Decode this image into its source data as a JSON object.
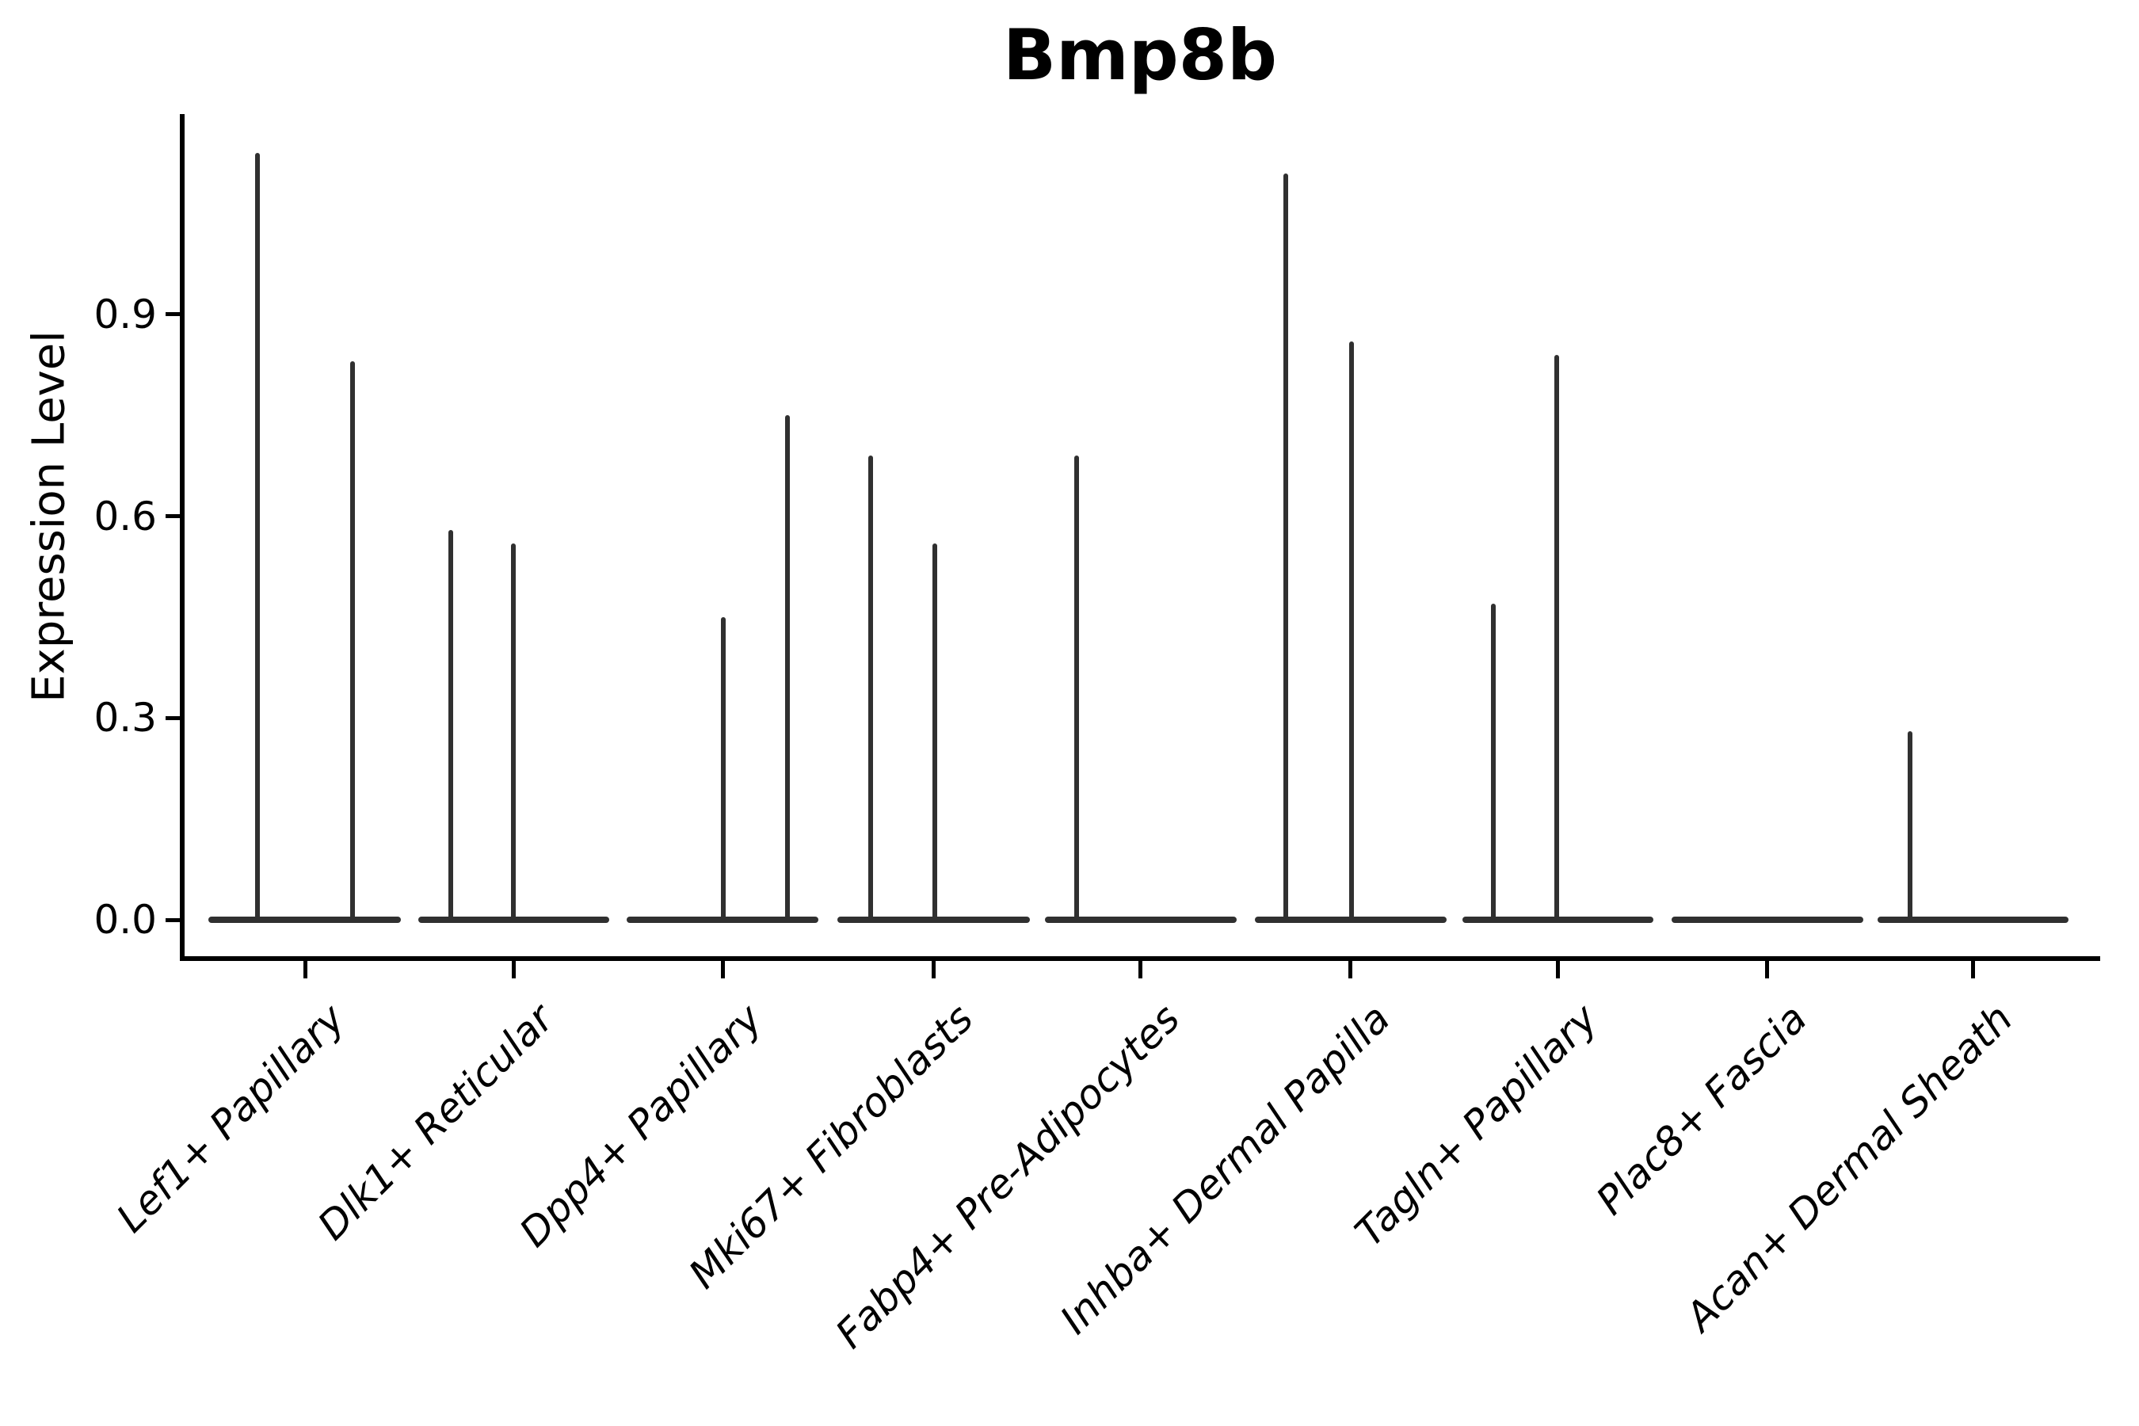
{
  "figure": {
    "title": "Bmp8b",
    "ylabel": "Expression Level"
  },
  "colors": {
    "axis": "#000000",
    "violin_line": "#303030",
    "text": "#000000",
    "background": "#ffffff"
  },
  "chart_data": {
    "type": "violin",
    "title": "Bmp8b",
    "xlabel": "",
    "ylabel": "Expression Level",
    "ylim": [
      0,
      1.2
    ],
    "grid": false,
    "legend": null,
    "yticks": [
      {
        "value": 0.0,
        "label": "0.0"
      },
      {
        "value": 0.3,
        "label": "0.3"
      },
      {
        "value": 0.6,
        "label": "0.6"
      },
      {
        "value": 0.9,
        "label": "0.9"
      }
    ],
    "categories": [
      "Lef1+ Papillary",
      "Dlk1+ Reticular",
      "Dpp4+ Papillary",
      "Mki67+ Fibroblasts",
      "Fabp4+ Pre-Adipocytes",
      "Inhba+ Dermal Papilla",
      "Tagln+ Papillary",
      "Plac8+ Fascia",
      "Acan+ Dermal Sheath"
    ],
    "violins": [
      {
        "category": "Lef1+ Papillary",
        "center_x": 385,
        "baseline_span": [
          263,
          506
        ],
        "spikes": [
          {
            "x": 325,
            "max_expression": 1.14
          },
          {
            "x": 445,
            "max_expression": 0.83
          }
        ]
      },
      {
        "category": "Dlk1+ Reticular",
        "center_x": 648,
        "baseline_span": [
          528,
          769
        ],
        "spikes": [
          {
            "x": 569,
            "max_expression": 0.58
          },
          {
            "x": 648,
            "max_expression": 0.56
          }
        ]
      },
      {
        "category": "Dpp4+ Papillary",
        "center_x": 912,
        "baseline_span": [
          791,
          1033
        ],
        "spikes": [
          {
            "x": 913,
            "max_expression": 0.45
          },
          {
            "x": 994,
            "max_expression": 0.75
          }
        ]
      },
      {
        "category": "Mki67+ Fibroblasts",
        "center_x": 1178,
        "baseline_span": [
          1057,
          1300
        ],
        "spikes": [
          {
            "x": 1099,
            "max_expression": 0.69
          },
          {
            "x": 1180,
            "max_expression": 0.56
          }
        ]
      },
      {
        "category": "Fabp4+ Pre-Adipocytes",
        "center_x": 1439,
        "baseline_span": [
          1319,
          1561
        ],
        "spikes": [
          {
            "x": 1359,
            "max_expression": 0.69
          }
        ]
      },
      {
        "category": "Inhba+ Dermal Papilla",
        "center_x": 1704,
        "baseline_span": [
          1584,
          1826
        ],
        "spikes": [
          {
            "x": 1623,
            "max_expression": 1.11
          },
          {
            "x": 1706,
            "max_expression": 0.86
          }
        ]
      },
      {
        "category": "Tagln+ Papillary",
        "center_x": 1966,
        "baseline_span": [
          1846,
          2087
        ],
        "spikes": [
          {
            "x": 1885,
            "max_expression": 0.47
          },
          {
            "x": 1965,
            "max_expression": 0.84
          }
        ]
      },
      {
        "category": "Plac8+ Fascia",
        "center_x": 2230,
        "baseline_span": [
          2110,
          2352
        ],
        "spikes": []
      },
      {
        "category": "Acan+ Dermal Sheath",
        "center_x": 2490,
        "baseline_span": [
          2370,
          2611
        ],
        "spikes": [
          {
            "x": 2411,
            "max_expression": 0.28
          }
        ]
      }
    ]
  }
}
